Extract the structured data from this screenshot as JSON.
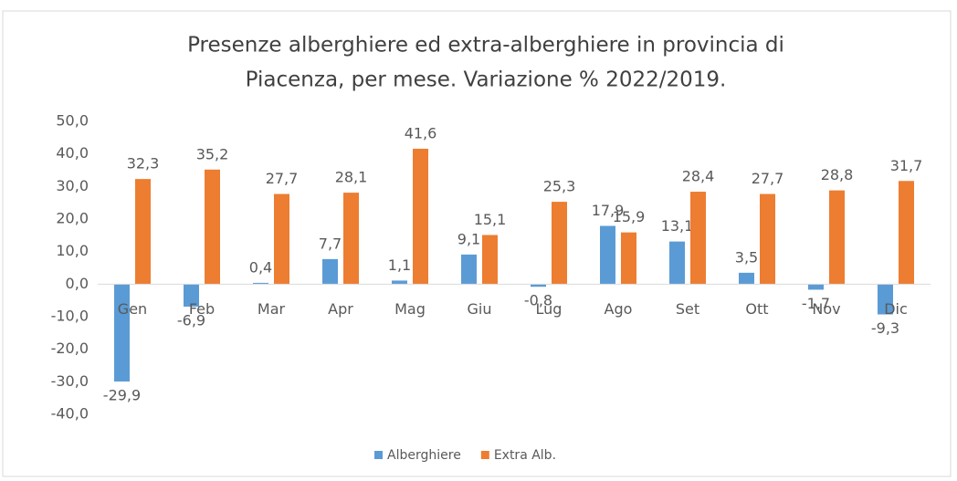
{
  "chart_data": {
    "type": "bar",
    "title": [
      "Presenze alberghiere ed extra-alberghiere in provincia di",
      "Piacenza, per mese. Variazione % 2022/2019."
    ],
    "categories": [
      "Gen",
      "Feb",
      "Mar",
      "Apr",
      "Mag",
      "Giu",
      "Lug",
      "Ago",
      "Set",
      "Ott",
      "Nov",
      "Dic"
    ],
    "series": [
      {
        "name": "Alberghiere",
        "color": "#5b9bd5",
        "values": [
          -29.9,
          -6.9,
          0.4,
          7.7,
          1.1,
          9.1,
          -0.8,
          17.9,
          13.1,
          3.5,
          -1.7,
          -9.3
        ],
        "value_labels": [
          "-29,9",
          "-6,9",
          "0,4",
          "7,7",
          "1,1",
          "9,1",
          "-0,8",
          "17,9",
          "13,1",
          "3,5",
          "-1,7",
          "-9,3"
        ]
      },
      {
        "name": "Extra Alb.",
        "color": "#ed7d31",
        "values": [
          32.3,
          35.2,
          27.7,
          28.1,
          41.6,
          15.1,
          25.3,
          15.9,
          28.4,
          27.7,
          28.8,
          31.7
        ],
        "value_labels": [
          "32,3",
          "35,2",
          "27,7",
          "28,1",
          "41,6",
          "15,1",
          "25,3",
          "15,9",
          "28,4",
          "27,7",
          "28,8",
          "31,7"
        ]
      }
    ],
    "ylim": [
      -40,
      50
    ],
    "yticks": [
      {
        "value": -40,
        "label": "-40,0"
      },
      {
        "value": -30,
        "label": "-30,0"
      },
      {
        "value": -20,
        "label": "-20,0"
      },
      {
        "value": -10,
        "label": "-10,0"
      },
      {
        "value": 0,
        "label": "0,0"
      },
      {
        "value": 10,
        "label": "10,0"
      },
      {
        "value": 20,
        "label": "20,0"
      },
      {
        "value": 30,
        "label": "30,0"
      },
      {
        "value": 40,
        "label": "40,0"
      },
      {
        "value": 50,
        "label": "50,0"
      }
    ],
    "grid": false,
    "legend": "bottom"
  }
}
